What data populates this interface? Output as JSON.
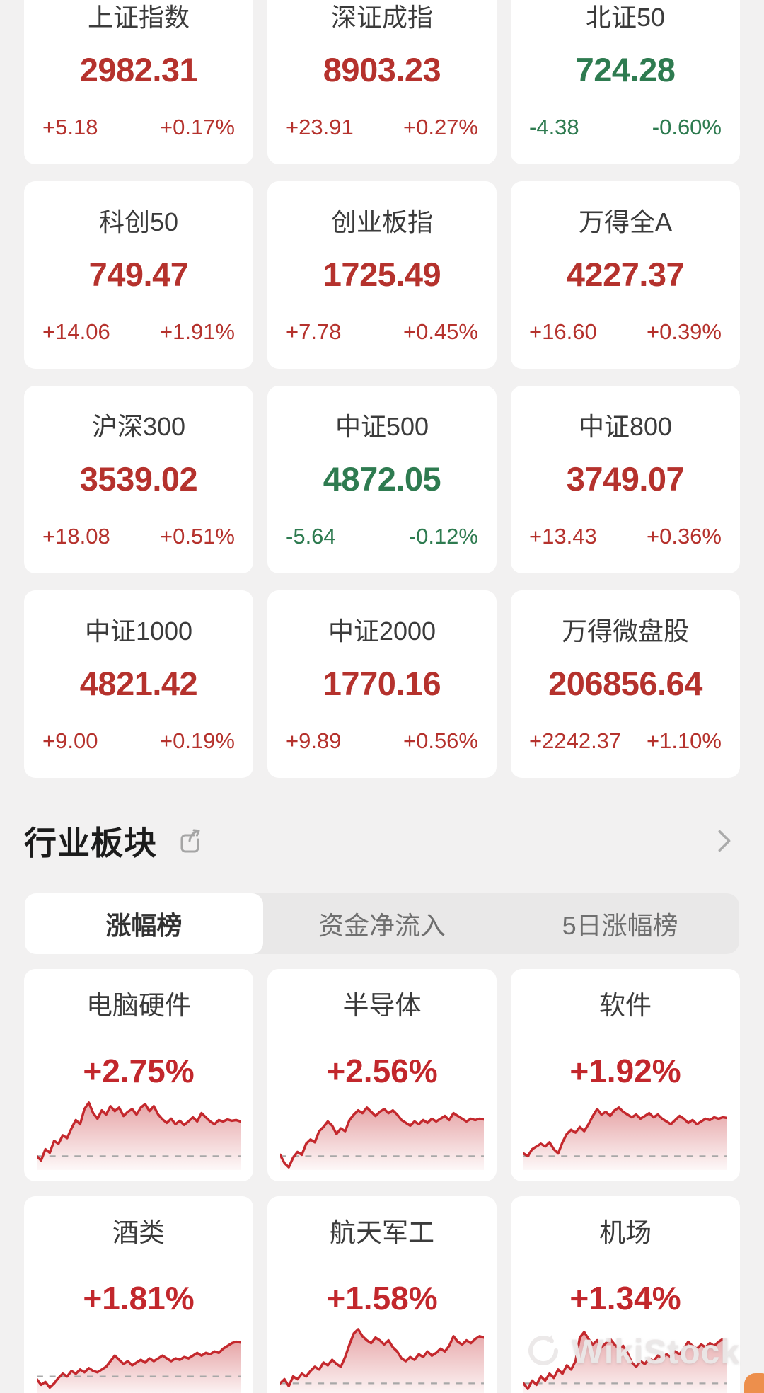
{
  "theme": {
    "page_bg": "#f2f1f1",
    "card_bg": "#ffffff",
    "up_red": "#b5322d",
    "down_green": "#2e7b50",
    "pct_red": "#c2272c",
    "chart_line": "#c4282d",
    "baseline_gray": "#a8a8a8",
    "tab_bg": "#e9e8e8",
    "orange_accent": "#ed8f4c"
  },
  "indices": [
    {
      "name": "上证指数",
      "value": "2982.31",
      "change": "+5.18",
      "change_pct": "+0.17%",
      "direction": "up"
    },
    {
      "name": "深证成指",
      "value": "8903.23",
      "change": "+23.91",
      "change_pct": "+0.27%",
      "direction": "up"
    },
    {
      "name": "北证50",
      "value": "724.28",
      "change": "-4.38",
      "change_pct": "-0.60%",
      "direction": "down"
    },
    {
      "name": "科创50",
      "value": "749.47",
      "change": "+14.06",
      "change_pct": "+1.91%",
      "direction": "up"
    },
    {
      "name": "创业板指",
      "value": "1725.49",
      "change": "+7.78",
      "change_pct": "+0.45%",
      "direction": "up"
    },
    {
      "name": "万得全A",
      "value": "4227.37",
      "change": "+16.60",
      "change_pct": "+0.39%",
      "direction": "up"
    },
    {
      "name": "沪深300",
      "value": "3539.02",
      "change": "+18.08",
      "change_pct": "+0.51%",
      "direction": "up"
    },
    {
      "name": "中证500",
      "value": "4872.05",
      "change": "-5.64",
      "change_pct": "-0.12%",
      "direction": "down"
    },
    {
      "name": "中证800",
      "value": "3749.07",
      "change": "+13.43",
      "change_pct": "+0.36%",
      "direction": "up"
    },
    {
      "name": "中证1000",
      "value": "4821.42",
      "change": "+9.00",
      "change_pct": "+0.19%",
      "direction": "up"
    },
    {
      "name": "中证2000",
      "value": "1770.16",
      "change": "+9.89",
      "change_pct": "+0.56%",
      "direction": "up"
    },
    {
      "name": "万得微盘股",
      "value": "206856.64",
      "change": "+2242.37",
      "change_pct": "+1.10%",
      "direction": "up"
    }
  ],
  "sector_section": {
    "title": "行业板块",
    "tabs": [
      {
        "label": "涨幅榜",
        "active": true
      },
      {
        "label": "资金净流入",
        "active": false
      },
      {
        "label": "5日涨幅榜",
        "active": false
      }
    ],
    "sectors": [
      {
        "name": "电脑硬件",
        "change_pct": "+2.75%"
      },
      {
        "name": "半导体",
        "change_pct": "+2.56%"
      },
      {
        "name": "软件",
        "change_pct": "+1.92%"
      },
      {
        "name": "酒类",
        "change_pct": "+1.81%"
      },
      {
        "name": "航天军工",
        "change_pct": "+1.58%"
      },
      {
        "name": "机场",
        "change_pct": "+1.34%"
      }
    ]
  },
  "chart_data": [
    {
      "sector": "电脑硬件",
      "type": "line",
      "baseline": 0.2,
      "values": [
        0.2,
        0.14,
        0.3,
        0.25,
        0.42,
        0.38,
        0.5,
        0.46,
        0.6,
        0.72,
        0.66,
        0.88,
        0.97,
        0.82,
        0.74,
        0.86,
        0.8,
        0.92,
        0.85,
        0.9,
        0.78,
        0.84,
        0.88,
        0.8,
        0.9,
        0.95,
        0.85,
        0.92,
        0.8,
        0.73,
        0.68,
        0.74,
        0.66,
        0.71,
        0.65,
        0.7,
        0.76,
        0.7,
        0.82,
        0.76,
        0.7,
        0.66,
        0.72,
        0.7,
        0.73,
        0.71,
        0.72,
        0.7
      ]
    },
    {
      "sector": "半导体",
      "type": "line",
      "baseline": 0.2,
      "values": [
        0.22,
        0.1,
        0.04,
        0.18,
        0.26,
        0.22,
        0.38,
        0.44,
        0.4,
        0.56,
        0.62,
        0.7,
        0.64,
        0.52,
        0.6,
        0.56,
        0.72,
        0.8,
        0.86,
        0.82,
        0.9,
        0.84,
        0.78,
        0.84,
        0.88,
        0.82,
        0.86,
        0.8,
        0.72,
        0.68,
        0.64,
        0.7,
        0.66,
        0.72,
        0.68,
        0.74,
        0.7,
        0.74,
        0.78,
        0.72,
        0.82,
        0.78,
        0.74,
        0.7,
        0.74,
        0.72,
        0.74,
        0.73
      ]
    },
    {
      "sector": "软件",
      "type": "line",
      "baseline": 0.2,
      "values": [
        0.24,
        0.2,
        0.3,
        0.34,
        0.38,
        0.34,
        0.4,
        0.3,
        0.24,
        0.4,
        0.52,
        0.58,
        0.54,
        0.62,
        0.56,
        0.66,
        0.78,
        0.88,
        0.8,
        0.84,
        0.78,
        0.86,
        0.9,
        0.84,
        0.8,
        0.76,
        0.8,
        0.74,
        0.78,
        0.82,
        0.76,
        0.8,
        0.74,
        0.7,
        0.66,
        0.72,
        0.78,
        0.74,
        0.68,
        0.72,
        0.66,
        0.7,
        0.74,
        0.72,
        0.76,
        0.74,
        0.76,
        0.75
      ]
    },
    {
      "sector": "酒类",
      "type": "line",
      "baseline": 0.3,
      "values": [
        0.26,
        0.18,
        0.22,
        0.14,
        0.2,
        0.28,
        0.34,
        0.3,
        0.38,
        0.34,
        0.4,
        0.36,
        0.42,
        0.38,
        0.36,
        0.4,
        0.44,
        0.52,
        0.6,
        0.54,
        0.48,
        0.52,
        0.46,
        0.5,
        0.54,
        0.5,
        0.56,
        0.52,
        0.56,
        0.6,
        0.56,
        0.52,
        0.56,
        0.54,
        0.58,
        0.56,
        0.6,
        0.64,
        0.6,
        0.64,
        0.62,
        0.66,
        0.64,
        0.7,
        0.74,
        0.78,
        0.8,
        0.79
      ]
    },
    {
      "sector": "航天军工",
      "type": "line",
      "baseline": 0.2,
      "values": [
        0.2,
        0.26,
        0.16,
        0.3,
        0.26,
        0.34,
        0.3,
        0.38,
        0.44,
        0.4,
        0.5,
        0.46,
        0.54,
        0.48,
        0.44,
        0.58,
        0.76,
        0.92,
        0.98,
        0.88,
        0.82,
        0.78,
        0.86,
        0.82,
        0.76,
        0.82,
        0.72,
        0.66,
        0.56,
        0.52,
        0.58,
        0.54,
        0.62,
        0.58,
        0.66,
        0.6,
        0.64,
        0.7,
        0.66,
        0.74,
        0.88,
        0.8,
        0.76,
        0.82,
        0.78,
        0.84,
        0.88,
        0.86
      ]
    },
    {
      "sector": "机场",
      "type": "line",
      "baseline": 0.2,
      "values": [
        0.2,
        0.12,
        0.24,
        0.18,
        0.3,
        0.24,
        0.34,
        0.28,
        0.4,
        0.34,
        0.46,
        0.4,
        0.52,
        0.86,
        0.94,
        0.84,
        0.76,
        0.82,
        0.72,
        0.78,
        0.84,
        0.76,
        0.7,
        0.74,
        0.64,
        0.5,
        0.44,
        0.52,
        0.48,
        0.56,
        0.52,
        0.6,
        0.56,
        0.62,
        0.58,
        0.66,
        0.62,
        0.7,
        0.8,
        0.74,
        0.7,
        0.76,
        0.72,
        0.78,
        0.74,
        0.8,
        0.84,
        0.82
      ]
    }
  ],
  "watermark": {
    "label": "WikiStock"
  }
}
